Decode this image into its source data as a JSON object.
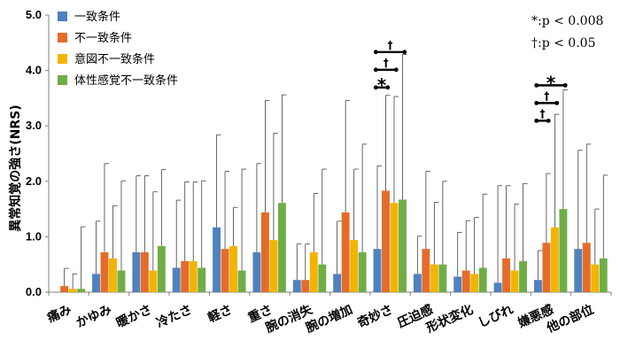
{
  "chart_data": {
    "type": "bar",
    "ylabel": "異常知覚の強さ(NRS)",
    "ylim": [
      0,
      5
    ],
    "yticks": [
      "0.0",
      "1.0",
      "2.0",
      "3.0",
      "4.0",
      "5.0"
    ],
    "grid": false,
    "legend_position": "top-left",
    "categories": [
      "痛み",
      "かゆみ",
      "暖かさ",
      "冷たさ",
      "軽さ",
      "重さ",
      "腕の消失",
      "腕の増加",
      "奇妙さ",
      "圧迫感",
      "形状変化",
      "しびれ",
      "嫌悪感",
      "他の部位"
    ],
    "series": [
      {
        "name": "一致条件",
        "color": "#4F81BD",
        "values": [
          0.0,
          0.33,
          0.72,
          0.44,
          1.17,
          0.72,
          0.22,
          0.33,
          0.78,
          0.33,
          0.28,
          0.17,
          0.22,
          0.78
        ],
        "errors": [
          0.0,
          0.95,
          1.38,
          1.22,
          1.67,
          1.6,
          0.65,
          0.95,
          1.5,
          0.68,
          0.8,
          1.75,
          0.53,
          1.78
        ]
      },
      {
        "name": "不一致条件",
        "color": "#E46C2A",
        "values": [
          0.11,
          0.72,
          0.72,
          0.56,
          0.78,
          1.44,
          0.22,
          1.44,
          1.83,
          0.78,
          0.39,
          0.61,
          0.89,
          0.89
        ],
        "errors": [
          0.32,
          1.6,
          1.38,
          1.43,
          1.4,
          2.02,
          0.65,
          2.02,
          1.72,
          1.4,
          0.9,
          1.31,
          1.25,
          1.78
        ]
      },
      {
        "name": "意図不一致条件",
        "color": "#F2B400",
        "values": [
          0.06,
          0.61,
          0.39,
          0.56,
          0.83,
          0.94,
          0.72,
          0.94,
          1.61,
          0.5,
          0.33,
          0.39,
          1.17,
          0.5
        ],
        "errors": [
          0.27,
          0.95,
          1.42,
          1.43,
          0.7,
          1.93,
          1.06,
          1.28,
          1.92,
          1.12,
          1.02,
          1.2,
          2.04,
          1.0
        ]
      },
      {
        "name": "体性感覚不一致条件",
        "color": "#70AD47",
        "values": [
          0.06,
          0.39,
          0.83,
          0.44,
          0.39,
          1.61,
          0.5,
          0.72,
          1.67,
          0.5,
          0.44,
          0.56,
          1.5,
          0.61
        ],
        "errors": [
          1.12,
          1.62,
          1.38,
          1.57,
          1.83,
          1.95,
          1.72,
          1.95,
          2.62,
          1.5,
          1.33,
          1.4,
          2.15,
          1.5
        ]
      }
    ],
    "annotations": {
      "note_star": "*:p < 0.008",
      "note_dagger": "†:p < 0.05",
      "significance": [
        {
          "category": "奇妙さ",
          "from_series": 0,
          "to_series": 1,
          "symbol": "*"
        },
        {
          "category": "奇妙さ",
          "from_series": 0,
          "to_series": 2,
          "symbol": "†"
        },
        {
          "category": "奇妙さ",
          "from_series": 0,
          "to_series": 3,
          "symbol": "†"
        },
        {
          "category": "嫌悪感",
          "from_series": 0,
          "to_series": 1,
          "symbol": "†"
        },
        {
          "category": "嫌悪感",
          "from_series": 0,
          "to_series": 2,
          "symbol": "†"
        },
        {
          "category": "嫌悪感",
          "from_series": 0,
          "to_series": 3,
          "symbol": "*"
        }
      ]
    }
  }
}
